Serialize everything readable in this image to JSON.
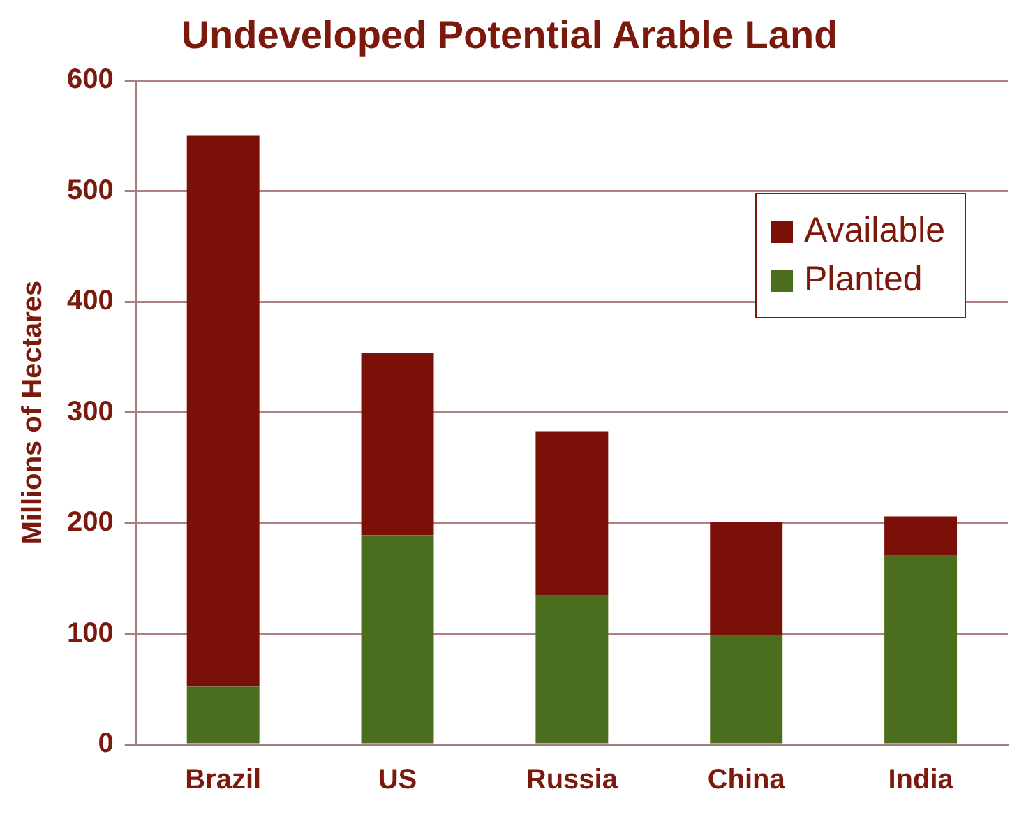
{
  "chart_data": {
    "type": "bar",
    "title": "Undeveloped Potential Arable Land",
    "ylabel": "Millions of Hectares",
    "categories": [
      "Brazil",
      "US",
      "Russia",
      "China",
      "India"
    ],
    "stacked": true,
    "series": [
      {
        "name": "Planted",
        "color": "#4a6e1e",
        "values": [
          52,
          189,
          135,
          99,
          171
        ]
      },
      {
        "name": "Available",
        "color": "#7a1008",
        "values": [
          498,
          165,
          148,
          102,
          35
        ]
      }
    ],
    "ylim": [
      0,
      600
    ],
    "yticks": [
      0,
      100,
      200,
      300,
      400,
      500,
      600
    ],
    "grid": "y",
    "legend": "top right"
  }
}
